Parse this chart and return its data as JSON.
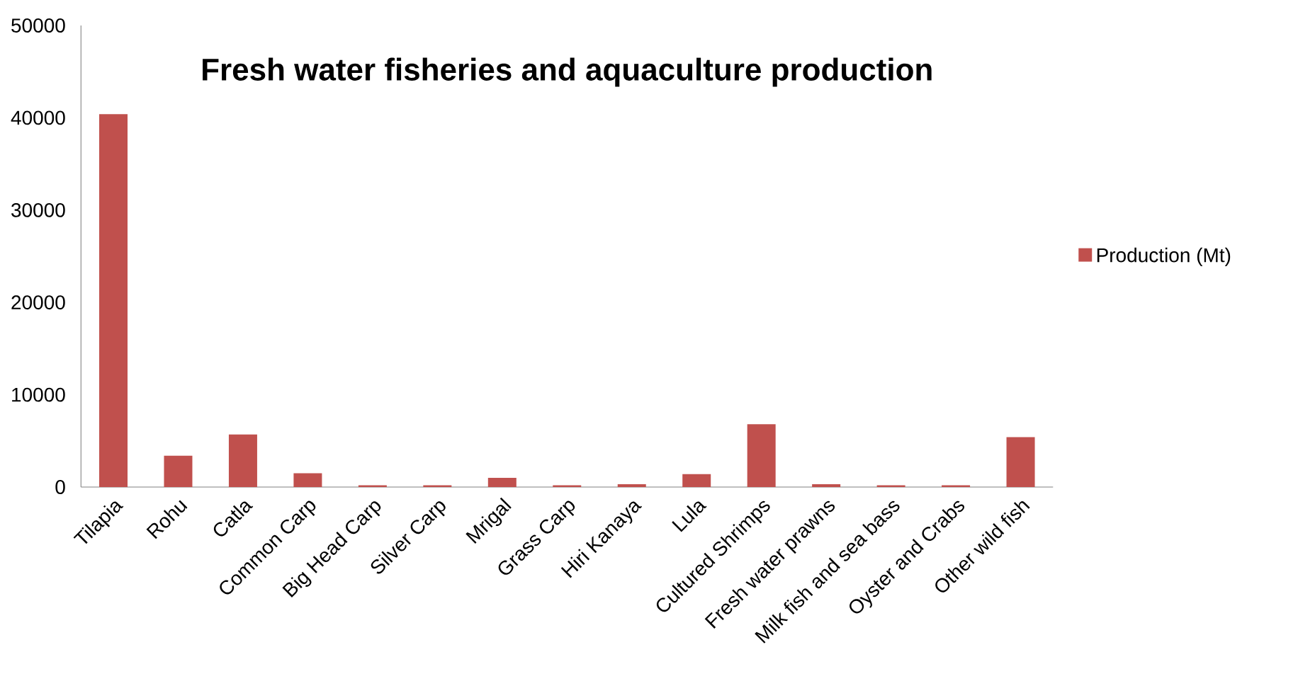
{
  "chart_data": {
    "type": "bar",
    "title": "Fresh water fisheries and aquaculture production",
    "categories": [
      "Tilapia",
      "Rohu",
      "Catla",
      "Common Carp",
      "Big Head Carp",
      "Silver Carp",
      "Mrigal",
      "Grass Carp",
      "Hiri Kanaya",
      "Lula",
      "Cultured Shrimps",
      "Fresh water prawns",
      "Milk fish and sea bass",
      "Oyster and Crabs",
      "Other wild fish"
    ],
    "series": [
      {
        "name": "Production (Mt)",
        "color": "#c0504d",
        "values": [
          40400,
          3400,
          5700,
          1500,
          200,
          200,
          1000,
          200,
          300,
          1400,
          6800,
          300,
          200,
          200,
          5400
        ]
      }
    ],
    "ylim": [
      0,
      50000
    ],
    "yticks": [
      0,
      10000,
      20000,
      30000,
      40000,
      50000
    ],
    "grid": false,
    "legend": "right"
  }
}
